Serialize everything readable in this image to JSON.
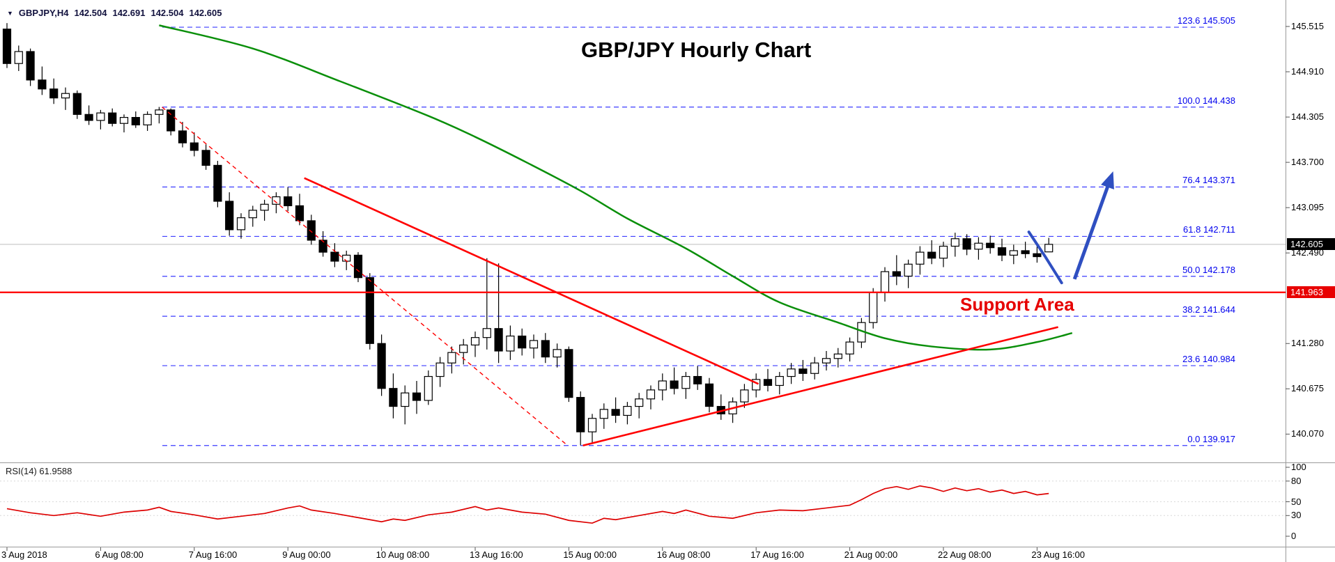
{
  "window": {
    "symbol_marker": "▼",
    "symbol_label": "GBPJPY,H4",
    "ohlc_open": "142.504",
    "ohlc_high": "142.691",
    "ohlc_low": "142.504",
    "ohlc_close": "142.605",
    "title": "GBP/JPY Hourly Chart"
  },
  "annotations": {
    "support_area_label": "Support Area"
  },
  "price_axis": {
    "tick_labels": [
      "145.515",
      "144.910",
      "144.305",
      "143.700",
      "143.095",
      "142.490",
      "141.280",
      "140.675",
      "140.070"
    ],
    "tick_prices": [
      145.515,
      144.91,
      144.305,
      143.7,
      143.095,
      142.49,
      141.28,
      140.675,
      140.07
    ],
    "current_price_label": "142.605",
    "current_price": 142.605,
    "support_price_label": "141.963",
    "support_price": 141.963
  },
  "time_axis": {
    "labels": [
      "3 Aug 2018",
      "6 Aug 08:00",
      "7 Aug 16:00",
      "9 Aug 00:00",
      "10 Aug 08:00",
      "13 Aug 16:00",
      "15 Aug 00:00",
      "16 Aug 08:00",
      "17 Aug 16:00",
      "21 Aug 00:00",
      "22 Aug 08:00",
      "23 Aug 16:00"
    ],
    "bars_per_label": 8
  },
  "rsi_pane": {
    "indicator_label": "RSI(14) 61.9588",
    "scale_labels": [
      "100",
      "80",
      "50",
      "30",
      "0"
    ],
    "scale_values": [
      100,
      80,
      50,
      30,
      0
    ],
    "level_lines": [
      80,
      50,
      30
    ]
  },
  "colors": {
    "background": "#ffffff",
    "candle_up_fill": "#ffffff",
    "candle_down_fill": "#000000",
    "candle_border": "#000000",
    "ma_line": "#0a8f0a",
    "trend_line": "#ff0000",
    "support_line": "#ff0000",
    "fib_line": "#3b3bff",
    "fib_label": "#0000ee",
    "arrow": "#2f4fc1",
    "rsi_line": "#dd0000",
    "separator": "#9a9a9a",
    "current_badge_bg": "#000000",
    "support_badge_bg": "#e80000",
    "ohlc_text": "#12123e",
    "title_text": "#000000",
    "support_text": "#e60000",
    "rsi_label_text": "#1a1a1a"
  },
  "chart_data": {
    "type": "candlestick",
    "symbol": "GBPJPY",
    "timeframe": "H4",
    "title": "GBP/JPY Hourly Chart",
    "ylim": [
      139.85,
      145.62
    ],
    "n_bars": 90,
    "candles_ohlc": [
      [
        145.48,
        145.56,
        144.96,
        145.02
      ],
      [
        145.02,
        145.26,
        144.92,
        145.18
      ],
      [
        145.18,
        145.22,
        144.72,
        144.8
      ],
      [
        144.8,
        144.98,
        144.6,
        144.68
      ],
      [
        144.68,
        144.82,
        144.48,
        144.56
      ],
      [
        144.56,
        144.7,
        144.4,
        144.62
      ],
      [
        144.62,
        144.66,
        144.28,
        144.34
      ],
      [
        144.34,
        144.46,
        144.2,
        144.26
      ],
      [
        144.26,
        144.4,
        144.14,
        144.36
      ],
      [
        144.36,
        144.42,
        144.18,
        144.22
      ],
      [
        144.22,
        144.34,
        144.1,
        144.3
      ],
      [
        144.3,
        144.38,
        144.16,
        144.2
      ],
      [
        144.2,
        144.38,
        144.12,
        144.34
      ],
      [
        144.34,
        144.44,
        144.22,
        144.4
      ],
      [
        144.4,
        144.42,
        144.06,
        144.12
      ],
      [
        144.12,
        144.24,
        143.9,
        143.96
      ],
      [
        143.96,
        144.1,
        143.78,
        143.86
      ],
      [
        143.86,
        143.94,
        143.6,
        143.66
      ],
      [
        143.66,
        143.72,
        143.1,
        143.18
      ],
      [
        143.18,
        143.3,
        142.72,
        142.8
      ],
      [
        142.8,
        143.02,
        142.68,
        142.96
      ],
      [
        142.96,
        143.12,
        142.84,
        143.06
      ],
      [
        143.06,
        143.2,
        142.92,
        143.14
      ],
      [
        143.14,
        143.3,
        143.02,
        143.24
      ],
      [
        143.24,
        143.37,
        143.05,
        143.12
      ],
      [
        143.12,
        143.28,
        142.86,
        142.92
      ],
      [
        142.92,
        143.0,
        142.6,
        142.66
      ],
      [
        142.66,
        142.78,
        142.44,
        142.5
      ],
      [
        142.5,
        142.62,
        142.3,
        142.38
      ],
      [
        142.38,
        142.52,
        142.26,
        142.46
      ],
      [
        142.46,
        142.5,
        142.1,
        142.16
      ],
      [
        142.16,
        142.22,
        141.2,
        141.28
      ],
      [
        141.28,
        141.4,
        140.58,
        140.68
      ],
      [
        140.68,
        140.88,
        140.28,
        140.44
      ],
      [
        140.44,
        140.72,
        140.2,
        140.62
      ],
      [
        140.62,
        140.78,
        140.34,
        140.52
      ],
      [
        140.52,
        140.92,
        140.46,
        140.84
      ],
      [
        140.84,
        141.1,
        140.7,
        141.02
      ],
      [
        141.02,
        141.24,
        140.88,
        141.16
      ],
      [
        141.16,
        141.34,
        141.0,
        141.26
      ],
      [
        141.26,
        141.44,
        141.1,
        141.36
      ],
      [
        141.36,
        142.42,
        141.2,
        141.48
      ],
      [
        141.48,
        142.35,
        141.02,
        141.18
      ],
      [
        141.18,
        141.52,
        141.06,
        141.38
      ],
      [
        141.38,
        141.48,
        141.12,
        141.22
      ],
      [
        141.22,
        141.4,
        141.08,
        141.32
      ],
      [
        141.32,
        141.42,
        141.02,
        141.1
      ],
      [
        141.1,
        141.28,
        140.96,
        141.2
      ],
      [
        141.2,
        141.24,
        140.5,
        140.56
      ],
      [
        140.56,
        140.64,
        139.92,
        140.1
      ],
      [
        140.1,
        140.34,
        139.96,
        140.28
      ],
      [
        140.28,
        140.48,
        140.14,
        140.4
      ],
      [
        140.4,
        140.56,
        140.22,
        140.32
      ],
      [
        140.32,
        140.5,
        140.2,
        140.44
      ],
      [
        140.44,
        140.62,
        140.28,
        140.54
      ],
      [
        140.54,
        140.72,
        140.4,
        140.66
      ],
      [
        140.66,
        140.88,
        140.52,
        140.78
      ],
      [
        140.78,
        140.96,
        140.6,
        140.68
      ],
      [
        140.68,
        140.9,
        140.54,
        140.84
      ],
      [
        140.84,
        140.98,
        140.66,
        140.74
      ],
      [
        140.74,
        140.82,
        140.36,
        140.44
      ],
      [
        140.44,
        140.6,
        140.26,
        140.34
      ],
      [
        140.34,
        140.56,
        140.22,
        140.5
      ],
      [
        140.5,
        140.74,
        140.42,
        140.66
      ],
      [
        140.66,
        140.88,
        140.56,
        140.8
      ],
      [
        140.8,
        140.94,
        140.64,
        140.72
      ],
      [
        140.72,
        140.9,
        140.6,
        140.84
      ],
      [
        140.84,
        141.02,
        140.74,
        140.94
      ],
      [
        140.94,
        141.06,
        140.78,
        140.88
      ],
      [
        140.88,
        141.1,
        140.8,
        141.02
      ],
      [
        141.02,
        141.18,
        140.92,
        141.08
      ],
      [
        141.08,
        141.22,
        140.96,
        141.14
      ],
      [
        141.14,
        141.36,
        141.04,
        141.3
      ],
      [
        141.3,
        141.62,
        141.22,
        141.56
      ],
      [
        141.56,
        142.02,
        141.48,
        141.96
      ],
      [
        141.96,
        142.3,
        141.84,
        142.24
      ],
      [
        142.24,
        142.46,
        142.06,
        142.18
      ],
      [
        142.18,
        142.4,
        142.02,
        142.34
      ],
      [
        142.34,
        142.58,
        142.2,
        142.5
      ],
      [
        142.5,
        142.66,
        142.34,
        142.42
      ],
      [
        142.42,
        142.64,
        142.3,
        142.58
      ],
      [
        142.58,
        142.76,
        142.44,
        142.68
      ],
      [
        142.68,
        142.74,
        142.46,
        142.54
      ],
      [
        142.54,
        142.7,
        142.4,
        142.62
      ],
      [
        142.62,
        142.72,
        142.48,
        142.56
      ],
      [
        142.56,
        142.68,
        142.38,
        142.46
      ],
      [
        142.46,
        142.6,
        142.34,
        142.52
      ],
      [
        142.52,
        142.64,
        142.42,
        142.48
      ],
      [
        142.48,
        142.58,
        142.36,
        142.44
      ],
      [
        142.504,
        142.691,
        142.504,
        142.605
      ]
    ],
    "moving_average": {
      "points": [
        [
          13,
          145.53
        ],
        [
          21,
          145.22
        ],
        [
          28.5,
          144.78
        ],
        [
          36,
          144.32
        ],
        [
          40,
          144.04
        ],
        [
          44.5,
          143.69
        ],
        [
          49,
          143.32
        ],
        [
          53,
          142.95
        ],
        [
          58,
          142.55
        ],
        [
          62,
          142.18
        ],
        [
          66,
          141.83
        ],
        [
          71,
          141.56
        ],
        [
          75,
          141.35
        ],
        [
          79,
          141.24
        ],
        [
          84,
          141.2
        ],
        [
          88,
          141.3
        ],
        [
          91,
          141.42
        ]
      ]
    },
    "fibonacci_retracement": {
      "levels": [
        {
          "label": "123.6",
          "price": 145.505,
          "text": "123.6 145.505"
        },
        {
          "label": "100.0",
          "price": 144.438,
          "text": "100.0 144.438"
        },
        {
          "label": "76.4",
          "price": 143.371,
          "text": "76.4 143.371"
        },
        {
          "label": "61.8",
          "price": 142.711,
          "text": "61.8 142.711"
        },
        {
          "label": "50.0",
          "price": 142.178,
          "text": "50.0 142.178"
        },
        {
          "label": "38.2",
          "price": 141.644,
          "text": "38.2 141.644"
        },
        {
          "label": "23.6",
          "price": 140.984,
          "text": "23.6 140.984"
        },
        {
          "label": "0.0",
          "price": 139.917,
          "text": "0.0 139.917"
        }
      ]
    },
    "trendlines": [
      {
        "name": "descending-trendline",
        "style": "solid",
        "from_bar": 25.4,
        "from_price": 143.49,
        "to_bar": 64.2,
        "to_price": 140.74
      },
      {
        "name": "fibonacci-diagonal",
        "style": "dashed",
        "from_bar": 13.25,
        "from_price": 144.438,
        "to_bar": 47.9,
        "to_price": 139.917
      },
      {
        "name": "ascending-trendline",
        "style": "solid",
        "from_bar": 49.2,
        "from_price": 139.917,
        "to_bar": 89.8,
        "to_price": 141.5
      }
    ],
    "support_line_price": 141.963,
    "arrow": {
      "tail_bar": 91.2,
      "tail_price": 142.14,
      "head_bar": 94.5,
      "head_price": 143.58
    },
    "pullback_stroke": [
      [
        87.3,
        142.77
      ],
      [
        88.7,
        142.44
      ],
      [
        90.1,
        142.09
      ]
    ],
    "rsi_points": [
      [
        0,
        40
      ],
      [
        2,
        34
      ],
      [
        4,
        30
      ],
      [
        6,
        34
      ],
      [
        8,
        29
      ],
      [
        10,
        35
      ],
      [
        12,
        38
      ],
      [
        13,
        42
      ],
      [
        14,
        36
      ],
      [
        16,
        31
      ],
      [
        18,
        25
      ],
      [
        20,
        29
      ],
      [
        22,
        33
      ],
      [
        24,
        41
      ],
      [
        25,
        44
      ],
      [
        26,
        38
      ],
      [
        28,
        33
      ],
      [
        30,
        27
      ],
      [
        32,
        21
      ],
      [
        33,
        25
      ],
      [
        34,
        23
      ],
      [
        36,
        31
      ],
      [
        38,
        35
      ],
      [
        40,
        43
      ],
      [
        41,
        38
      ],
      [
        42,
        41
      ],
      [
        44,
        35
      ],
      [
        46,
        32
      ],
      [
        48,
        23
      ],
      [
        50,
        19
      ],
      [
        51,
        26
      ],
      [
        52,
        24
      ],
      [
        54,
        30
      ],
      [
        56,
        36
      ],
      [
        57,
        33
      ],
      [
        58,
        38
      ],
      [
        60,
        29
      ],
      [
        62,
        26
      ],
      [
        64,
        34
      ],
      [
        66,
        38
      ],
      [
        68,
        37
      ],
      [
        70,
        41
      ],
      [
        72,
        45
      ],
      [
        73,
        53
      ],
      [
        74,
        62
      ],
      [
        75,
        69
      ],
      [
        76,
        72
      ],
      [
        77,
        68
      ],
      [
        78,
        73
      ],
      [
        79,
        70
      ],
      [
        80,
        65
      ],
      [
        81,
        70
      ],
      [
        82,
        66
      ],
      [
        83,
        69
      ],
      [
        84,
        64
      ],
      [
        85,
        67
      ],
      [
        86,
        62
      ],
      [
        87,
        65
      ],
      [
        88,
        60
      ],
      [
        89,
        62
      ]
    ]
  }
}
